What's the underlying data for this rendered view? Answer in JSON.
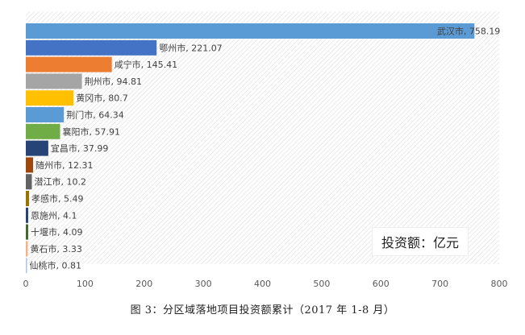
{
  "chart_data": {
    "type": "bar",
    "orientation": "horizontal",
    "categories": [
      "武汉市",
      "鄂州市",
      "咸宁市",
      "荆州市",
      "黄冈市",
      "荆门市",
      "襄阳市",
      "宜昌市",
      "随州市",
      "潜江市",
      "孝感市",
      "恩施州",
      "十堰市",
      "黄石市",
      "仙桃市"
    ],
    "values": [
      758.19,
      221.07,
      145.41,
      94.81,
      80.7,
      64.34,
      57.91,
      37.99,
      12.31,
      10.2,
      5.49,
      4.1,
      4.09,
      3.33,
      0.81
    ],
    "data_labels": [
      "武汉市, 758.19",
      "鄂州市, 221.07",
      "咸宁市, 145.41",
      "荆州市, 94.81",
      "黄冈市, 80.7",
      "荆门市, 64.34",
      "襄阳市, 57.91",
      "宜昌市, 37.99",
      "随州市, 12.31",
      "潜江市, 10.2",
      "孝感市, 5.49",
      "恩施州, 4.1",
      "十堰市, 4.09",
      "黄石市, 3.33",
      "仙桃市, 0.81"
    ],
    "colors": [
      "#5B9BD5",
      "#4472C4",
      "#ED7D31",
      "#A5A5A5",
      "#FFC000",
      "#5B9BD5",
      "#70AD47",
      "#264478",
      "#9E480E",
      "#636363",
      "#997300",
      "#264478",
      "#43682B",
      "#F4B183",
      "#A9C4E8"
    ],
    "xlim": [
      0,
      800
    ],
    "xticks": [
      "0",
      "100",
      "200",
      "300",
      "400",
      "500",
      "600",
      "700",
      "800"
    ],
    "grid": false,
    "legend": "none",
    "unit_note": "投资额：亿元",
    "caption": "图 3：分区域落地项目投资额累计（2017 年 1-8 月）"
  }
}
